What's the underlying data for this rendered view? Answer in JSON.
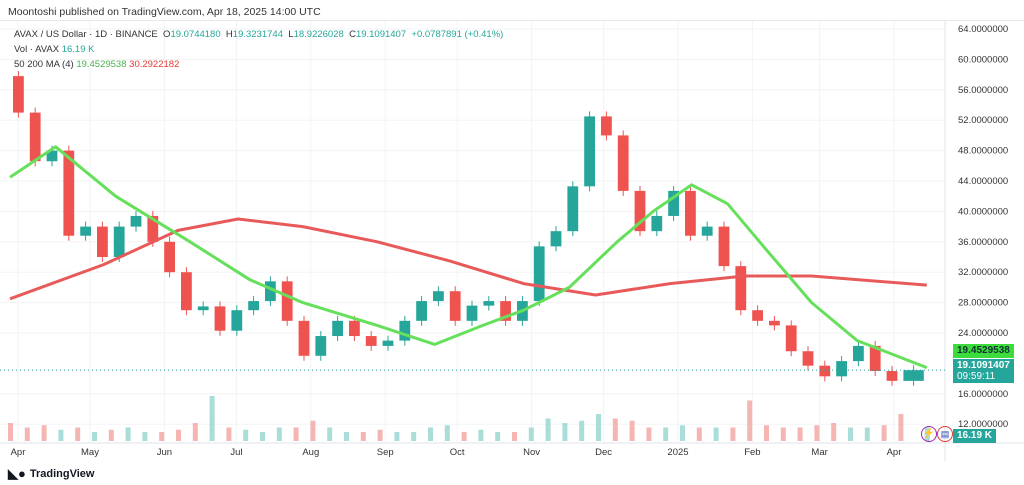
{
  "header": {
    "published": "Moontoshi published on TradingView.com, Apr 18, 2025 14:00 UTC"
  },
  "legend": {
    "symbol": "AVAX / US Dollar · 1D · BINANCE",
    "o_label": "O",
    "o": "19.0744180",
    "h_label": "H",
    "h": "19.3231744",
    "l_label": "L",
    "l": "18.9226028",
    "c_label": "C",
    "c": "19.1091407",
    "change": "+0.0787891 (+0.41%)",
    "vol_label": "Vol · AVAX",
    "vol": "16.19 K",
    "ma_label": "50 200 MA (4)",
    "ma50": "19.4529538",
    "ma200": "30.2922182"
  },
  "tags": {
    "ma50": "19.4529538",
    "price": "19.1091407",
    "countdown": "09:59:11",
    "vol": "16.19 K"
  },
  "footer": {
    "logo": "TradingView"
  },
  "colors": {
    "up": "#26a69a",
    "down": "#ef5350",
    "ma50": "#66e05a",
    "ma200": "#e85a5a",
    "ma50_tag": "#3ddc3d",
    "price_tag": "#26a69a"
  },
  "chart_data": {
    "type": "candlestick",
    "ylim": [
      12,
      64
    ],
    "y_ticks": [
      "64.0000000",
      "60.0000000",
      "56.0000000",
      "52.0000000",
      "48.0000000",
      "44.0000000",
      "40.0000000",
      "36.0000000",
      "32.0000000",
      "28.0000000",
      "24.0000000",
      "16.0000000",
      "12.0000000"
    ],
    "x_ticks": [
      {
        "date": "2024-04-01",
        "label": "Apr"
      },
      {
        "date": "2024-05-01",
        "label": "May"
      },
      {
        "date": "2024-06-01",
        "label": "Jun"
      },
      {
        "date": "2024-07-01",
        "label": "Jul"
      },
      {
        "date": "2024-08-01",
        "label": "Aug"
      },
      {
        "date": "2024-09-01",
        "label": "Sep"
      },
      {
        "date": "2024-10-01",
        "label": "Oct"
      },
      {
        "date": "2024-11-01",
        "label": "Nov"
      },
      {
        "date": "2024-12-01",
        "label": "Dec"
      },
      {
        "date": "2025-01-01",
        "label": "2025"
      },
      {
        "date": "2025-02-01",
        "label": "Feb"
      },
      {
        "date": "2025-03-01",
        "label": "Mar"
      },
      {
        "date": "2025-04-01",
        "label": "Apr"
      }
    ],
    "closes": [
      [
        "2024-04-01",
        57.8
      ],
      [
        "2024-04-08",
        53
      ],
      [
        "2024-04-15",
        46.6
      ],
      [
        "2024-04-22",
        48
      ],
      [
        "2024-04-29",
        36.8
      ],
      [
        "2024-05-06",
        38
      ],
      [
        "2024-05-13",
        34
      ],
      [
        "2024-05-20",
        38
      ],
      [
        "2024-05-27",
        39.4
      ],
      [
        "2024-06-03",
        36
      ],
      [
        "2024-06-10",
        32
      ],
      [
        "2024-06-17",
        27
      ],
      [
        "2024-06-24",
        27.5
      ],
      [
        "2024-07-01",
        24.3
      ],
      [
        "2024-07-08",
        27
      ],
      [
        "2024-07-15",
        28.2
      ],
      [
        "2024-07-22",
        30.8
      ],
      [
        "2024-07-29",
        25.6
      ],
      [
        "2024-08-05",
        21
      ],
      [
        "2024-08-12",
        23.6
      ],
      [
        "2024-08-19",
        25.6
      ],
      [
        "2024-08-26",
        23.6
      ],
      [
        "2024-09-02",
        22.3
      ],
      [
        "2024-09-09",
        23
      ],
      [
        "2024-09-16",
        25.6
      ],
      [
        "2024-09-23",
        28.2
      ],
      [
        "2024-09-30",
        29.5
      ],
      [
        "2024-10-07",
        25.6
      ],
      [
        "2024-10-14",
        27.6
      ],
      [
        "2024-10-21",
        28.2
      ],
      [
        "2024-10-28",
        25.6
      ],
      [
        "2024-11-04",
        28.2
      ],
      [
        "2024-11-11",
        35.4
      ],
      [
        "2024-11-18",
        37.4
      ],
      [
        "2024-11-25",
        43.3
      ],
      [
        "2024-12-02",
        52.5
      ],
      [
        "2024-12-09",
        50
      ],
      [
        "2024-12-16",
        42.7
      ],
      [
        "2024-12-23",
        37.4
      ],
      [
        "2024-12-30",
        39.4
      ],
      [
        "2025-01-06",
        42.7
      ],
      [
        "2025-01-13",
        36.8
      ],
      [
        "2025-01-20",
        38
      ],
      [
        "2025-01-27",
        32.8
      ],
      [
        "2025-02-03",
        27
      ],
      [
        "2025-02-10",
        25.6
      ],
      [
        "2025-02-17",
        25
      ],
      [
        "2025-02-24",
        21.6
      ],
      [
        "2025-03-03",
        19.7
      ],
      [
        "2025-03-10",
        18.3
      ],
      [
        "2025-03-17",
        20.3
      ],
      [
        "2025-03-24",
        22.3
      ],
      [
        "2025-03-31",
        19
      ],
      [
        "2025-04-07",
        17.7
      ],
      [
        "2025-04-18",
        19.11
      ]
    ],
    "ma50": [
      [
        "2024-04-01",
        44.5
      ],
      [
        "2024-04-20",
        48.5
      ],
      [
        "2024-05-15",
        42
      ],
      [
        "2024-06-15",
        36
      ],
      [
        "2024-07-10",
        31
      ],
      [
        "2024-08-01",
        28
      ],
      [
        "2024-09-01",
        25
      ],
      [
        "2024-09-25",
        22.5
      ],
      [
        "2024-10-15",
        25
      ],
      [
        "2024-11-01",
        27
      ],
      [
        "2024-11-20",
        30
      ],
      [
        "2024-12-10",
        36
      ],
      [
        "2024-12-25",
        40
      ],
      [
        "2025-01-10",
        43.5
      ],
      [
        "2025-01-25",
        41
      ],
      [
        "2025-02-10",
        35
      ],
      [
        "2025-03-01",
        28
      ],
      [
        "2025-03-20",
        23
      ],
      [
        "2025-04-18",
        19.45
      ]
    ],
    "ma200": [
      [
        "2024-04-01",
        28.5
      ],
      [
        "2024-05-10",
        33
      ],
      [
        "2024-06-10",
        37.5
      ],
      [
        "2024-07-05",
        39
      ],
      [
        "2024-08-01",
        38
      ],
      [
        "2024-09-01",
        36
      ],
      [
        "2024-10-01",
        33.5
      ],
      [
        "2024-11-01",
        30.5
      ],
      [
        "2024-12-01",
        29
      ],
      [
        "2025-01-01",
        30.5
      ],
      [
        "2025-02-01",
        31.5
      ],
      [
        "2025-03-01",
        31.5
      ],
      [
        "2025-04-18",
        30.3
      ]
    ],
    "volume_relative": [
      0.4,
      0.3,
      0.35,
      0.25,
      0.3,
      0.2,
      0.25,
      0.3,
      0.2,
      0.2,
      0.25,
      0.4,
      1.0,
      0.3,
      0.25,
      0.2,
      0.3,
      0.3,
      0.45,
      0.3,
      0.2,
      0.2,
      0.25,
      0.2,
      0.2,
      0.3,
      0.35,
      0.2,
      0.25,
      0.2,
      0.2,
      0.3,
      0.5,
      0.4,
      0.45,
      0.6,
      0.5,
      0.45,
      0.3,
      0.3,
      0.35,
      0.3,
      0.3,
      0.3,
      0.9,
      0.35,
      0.3,
      0.3,
      0.35,
      0.4,
      0.3,
      0.3,
      0.35,
      0.6,
      0.3
    ]
  }
}
